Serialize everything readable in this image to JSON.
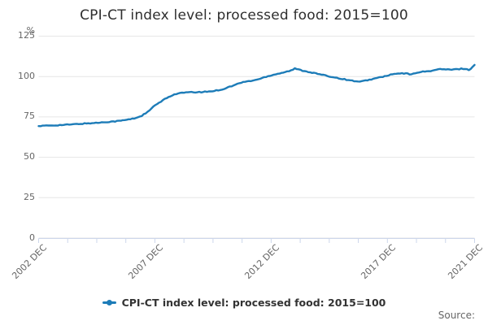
{
  "title": "CPI-CT index level: processed food: 2015=100",
  "colors": {
    "line": "#1d7cb8",
    "grid": "#e6e6e6",
    "axis": "#ccd6eb",
    "muted_text": "#666666",
    "title_text": "#2e2e2e",
    "legend_text": "#333333"
  },
  "y_axis": {
    "unit_label": "%",
    "tick_labels": [
      "125",
      "100",
      "75",
      "50",
      "25",
      "0"
    ]
  },
  "x_axis": {
    "labels": [
      "2002 DEC",
      "2007 DEC",
      "2012 DEC",
      "2017 DEC",
      "2021 DEC"
    ],
    "minor_tick_count": 16,
    "labeled_tick_indices": [
      0,
      4,
      8,
      12,
      15
    ]
  },
  "legend": {
    "label": "CPI-CT index level: processed food: 2015=100"
  },
  "source_label": "Source:",
  "chart_data": {
    "type": "line",
    "title": "CPI-CT index level: processed food: 2015=100",
    "xlabel": "",
    "ylabel": "%",
    "ylim": [
      0,
      125
    ],
    "yticks": [
      0,
      25,
      50,
      75,
      100,
      125
    ],
    "grid": "horizontal",
    "legend_position": "bottom-center",
    "x_start": "2002 DEC",
    "x_end": "2021 DEC",
    "x_frequency": "monthly",
    "x_total_months": 228,
    "series": [
      {
        "name": "CPI-CT index level: processed food: 2015=100",
        "color": "#1d7cb8",
        "points_format": "[months_since_2002_DEC, index_value]",
        "points": [
          [
            0,
            69.3
          ],
          [
            6,
            69.7
          ],
          [
            12,
            70.0
          ],
          [
            18,
            70.4
          ],
          [
            24,
            70.9
          ],
          [
            30,
            71.3
          ],
          [
            36,
            71.9
          ],
          [
            42,
            72.5
          ],
          [
            48,
            73.6
          ],
          [
            51,
            74.4
          ],
          [
            54,
            75.8
          ],
          [
            57,
            78.0
          ],
          [
            60,
            81.3
          ],
          [
            63,
            83.8
          ],
          [
            66,
            86.0
          ],
          [
            69,
            88.0
          ],
          [
            72,
            89.3
          ],
          [
            75,
            89.9
          ],
          [
            78,
            90.2
          ],
          [
            84,
            90.3
          ],
          [
            90,
            90.8
          ],
          [
            96,
            92.0
          ],
          [
            99,
            93.3
          ],
          [
            102,
            94.5
          ],
          [
            105,
            95.9
          ],
          [
            108,
            96.8
          ],
          [
            111,
            97.3
          ],
          [
            114,
            98.0
          ],
          [
            117,
            99.1
          ],
          [
            120,
            100.3
          ],
          [
            126,
            102.0
          ],
          [
            132,
            103.7
          ],
          [
            134,
            104.9
          ],
          [
            138,
            103.7
          ],
          [
            144,
            102.2
          ],
          [
            150,
            100.6
          ],
          [
            156,
            99.2
          ],
          [
            162,
            97.8
          ],
          [
            168,
            96.7
          ],
          [
            174,
            98.3
          ],
          [
            180,
            99.9
          ],
          [
            186,
            101.6
          ],
          [
            192,
            102.0
          ],
          [
            195,
            101.2
          ],
          [
            198,
            102.6
          ],
          [
            204,
            103.3
          ],
          [
            210,
            104.6
          ],
          [
            216,
            104.2
          ],
          [
            222,
            104.9
          ],
          [
            225,
            104.2
          ],
          [
            226,
            104.8
          ],
          [
            227,
            105.9
          ],
          [
            228,
            107.2
          ]
        ]
      }
    ]
  }
}
